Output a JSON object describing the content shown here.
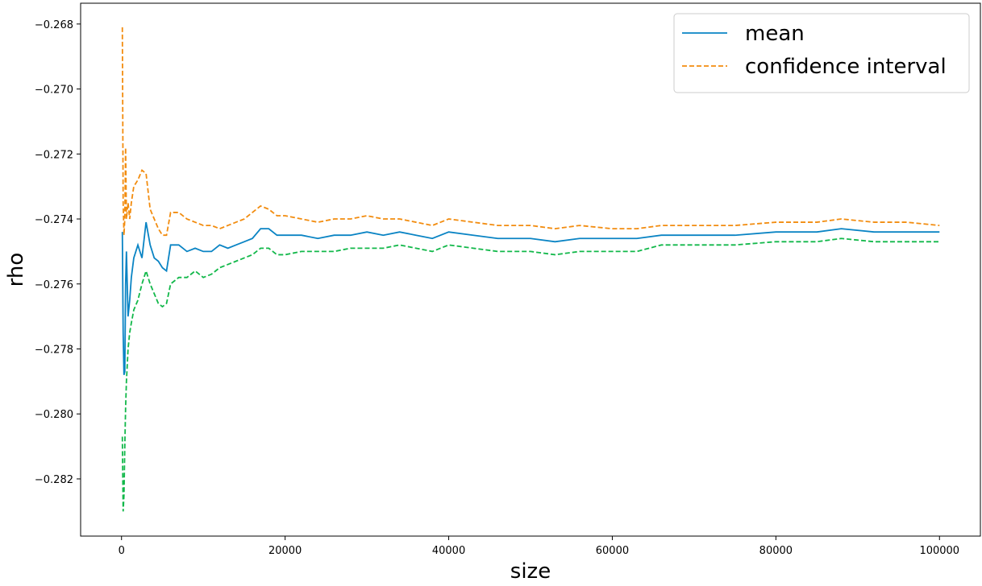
{
  "chart_data": {
    "type": "line",
    "xlabel": "size",
    "ylabel": "rho",
    "x": [
      100,
      200,
      300,
      400,
      500,
      600,
      800,
      1000,
      1200,
      1500,
      2000,
      2500,
      3000,
      3500,
      4000,
      4500,
      5000,
      5500,
      6000,
      7000,
      8000,
      9000,
      10000,
      11000,
      12000,
      13000,
      14000,
      15000,
      16000,
      17000,
      18000,
      19000,
      20000,
      22000,
      24000,
      26000,
      28000,
      30000,
      32000,
      34000,
      36000,
      38000,
      40000,
      43000,
      46000,
      50000,
      53000,
      56000,
      60000,
      63000,
      66000,
      70000,
      75000,
      80000,
      85000,
      88000,
      92000,
      96000,
      100000
    ],
    "series": [
      {
        "name": "mean",
        "color": "#0a84c4",
        "style": "solid",
        "values": [
          -0.2744,
          -0.2775,
          -0.2788,
          -0.2787,
          -0.276,
          -0.275,
          -0.277,
          -0.2765,
          -0.2758,
          -0.2752,
          -0.2748,
          -0.2752,
          -0.2741,
          -0.2748,
          -0.2752,
          -0.2753,
          -0.2755,
          -0.2756,
          -0.2748,
          -0.2748,
          -0.275,
          -0.2749,
          -0.275,
          -0.275,
          -0.2748,
          -0.2749,
          -0.2748,
          -0.2747,
          -0.2746,
          -0.2743,
          -0.2743,
          -0.2745,
          -0.2745,
          -0.2745,
          -0.2746,
          -0.2745,
          -0.2745,
          -0.2744,
          -0.2745,
          -0.2744,
          -0.2745,
          -0.2746,
          -0.2744,
          -0.2745,
          -0.2746,
          -0.2746,
          -0.2747,
          -0.2746,
          -0.2746,
          -0.2746,
          -0.2745,
          -0.2745,
          -0.2745,
          -0.2744,
          -0.2744,
          -0.2743,
          -0.2744,
          -0.2744,
          -0.2744
        ]
      },
      {
        "name": "confidence interval",
        "color": "#f28c0f",
        "style": "dashed",
        "values": [
          -0.2681,
          -0.2735,
          -0.2745,
          -0.274,
          -0.2718,
          -0.274,
          -0.2735,
          -0.274,
          -0.2735,
          -0.273,
          -0.2728,
          -0.2725,
          -0.2726,
          -0.2737,
          -0.274,
          -0.2743,
          -0.2745,
          -0.2745,
          -0.2738,
          -0.2738,
          -0.274,
          -0.2741,
          -0.2742,
          -0.2742,
          -0.2743,
          -0.2742,
          -0.2741,
          -0.274,
          -0.2738,
          -0.2736,
          -0.2737,
          -0.2739,
          -0.2739,
          -0.274,
          -0.2741,
          -0.274,
          -0.274,
          -0.2739,
          -0.274,
          -0.274,
          -0.2741,
          -0.2742,
          -0.274,
          -0.2741,
          -0.2742,
          -0.2742,
          -0.2743,
          -0.2742,
          -0.2743,
          -0.2743,
          -0.2742,
          -0.2742,
          -0.2742,
          -0.2741,
          -0.2741,
          -0.274,
          -0.2741,
          -0.2741,
          -0.2742
        ]
      },
      {
        "color": "#12b84a",
        "style": "dashed",
        "values": [
          -0.2807,
          -0.283,
          -0.2825,
          -0.281,
          -0.2798,
          -0.279,
          -0.278,
          -0.2775,
          -0.2772,
          -0.2768,
          -0.2765,
          -0.276,
          -0.2756,
          -0.276,
          -0.2763,
          -0.2766,
          -0.2767,
          -0.2766,
          -0.276,
          -0.2758,
          -0.2758,
          -0.2756,
          -0.2758,
          -0.2757,
          -0.2755,
          -0.2754,
          -0.2753,
          -0.2752,
          -0.2751,
          -0.2749,
          -0.2749,
          -0.2751,
          -0.2751,
          -0.275,
          -0.275,
          -0.275,
          -0.2749,
          -0.2749,
          -0.2749,
          -0.2748,
          -0.2749,
          -0.275,
          -0.2748,
          -0.2749,
          -0.275,
          -0.275,
          -0.2751,
          -0.275,
          -0.275,
          -0.275,
          -0.2748,
          -0.2748,
          -0.2748,
          -0.2747,
          -0.2747,
          -0.2746,
          -0.2747,
          -0.2747,
          -0.2747
        ]
      }
    ],
    "xlim": [
      -5000,
      105000
    ],
    "xticks": [
      0,
      20000,
      40000,
      60000,
      80000,
      100000
    ],
    "ylim": [
      -0.28376,
      -0.26736
    ],
    "yticks": [
      {
        "value": -0.282,
        "label": "−0.282"
      },
      {
        "value": -0.28,
        "label": "−0.280"
      },
      {
        "value": -0.278,
        "label": "−0.278"
      },
      {
        "value": -0.276,
        "label": "−0.276"
      },
      {
        "value": -0.274,
        "label": "−0.274"
      },
      {
        "value": -0.272,
        "label": "−0.272"
      },
      {
        "value": -0.27,
        "label": "−0.270"
      },
      {
        "value": -0.268,
        "label": "−0.268"
      }
    ],
    "grid": false,
    "legend": "upper right"
  }
}
